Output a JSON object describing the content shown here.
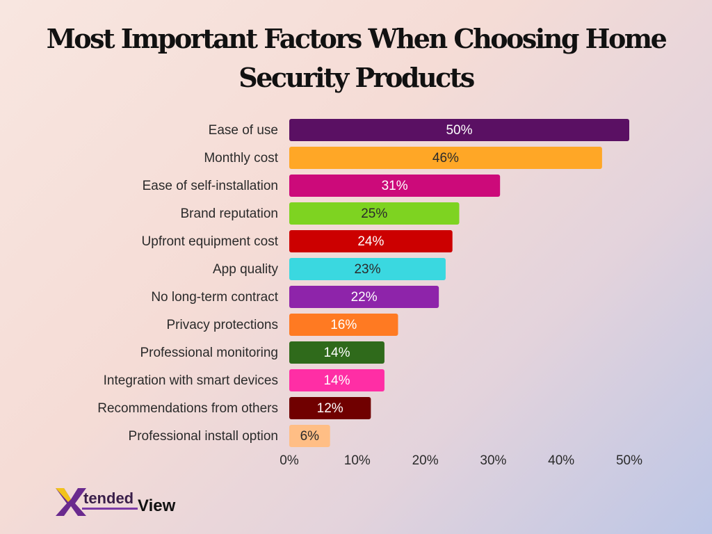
{
  "title": "Most Important Factors When Choosing Home Security Products",
  "logo": {
    "text_tended": "tended",
    "text_view": "View",
    "colors": {
      "purple": "#6a2a8e",
      "gold": "#f2c21b"
    }
  },
  "chart_data": {
    "type": "bar",
    "orientation": "horizontal",
    "title": "Most Important Factors When Choosing Home Security Products",
    "xlabel": "",
    "ylabel": "",
    "xlim": [
      0,
      50
    ],
    "ticks": [
      "0%",
      "10%",
      "20%",
      "30%",
      "40%",
      "50%"
    ],
    "grid": false,
    "legend": "none",
    "categories": [
      "Ease of use",
      "Monthly cost",
      "Ease of self-installation",
      "Brand reputation",
      "Upfront equipment cost",
      "App quality",
      "No long-term contract",
      "Privacy protections",
      "Professional monitoring",
      "Integration with smart devices",
      "Recommendations from others",
      "Professional install option"
    ],
    "values": [
      50,
      46,
      31,
      25,
      24,
      23,
      22,
      16,
      14,
      14,
      12,
      6
    ],
    "value_labels": [
      "50%",
      "46%",
      "31%",
      "25%",
      "24%",
      "23%",
      "22%",
      "16%",
      "14%",
      "14%",
      "12%",
      "6%"
    ],
    "colors": [
      "#5a1063",
      "#ffa726",
      "#cc0a7a",
      "#7ed321",
      "#cc0000",
      "#3ad8e0",
      "#8e24aa",
      "#ff7a22",
      "#2f6a1b",
      "#ff2ea5",
      "#700000",
      "#ffbe85"
    ],
    "label_colors": [
      "#ffffff",
      "#2a2a2a",
      "#ffffff",
      "#2a2a2a",
      "#ffffff",
      "#2a2a2a",
      "#ffffff",
      "#ffffff",
      "#ffffff",
      "#ffffff",
      "#ffffff",
      "#2a2a2a"
    ]
  }
}
